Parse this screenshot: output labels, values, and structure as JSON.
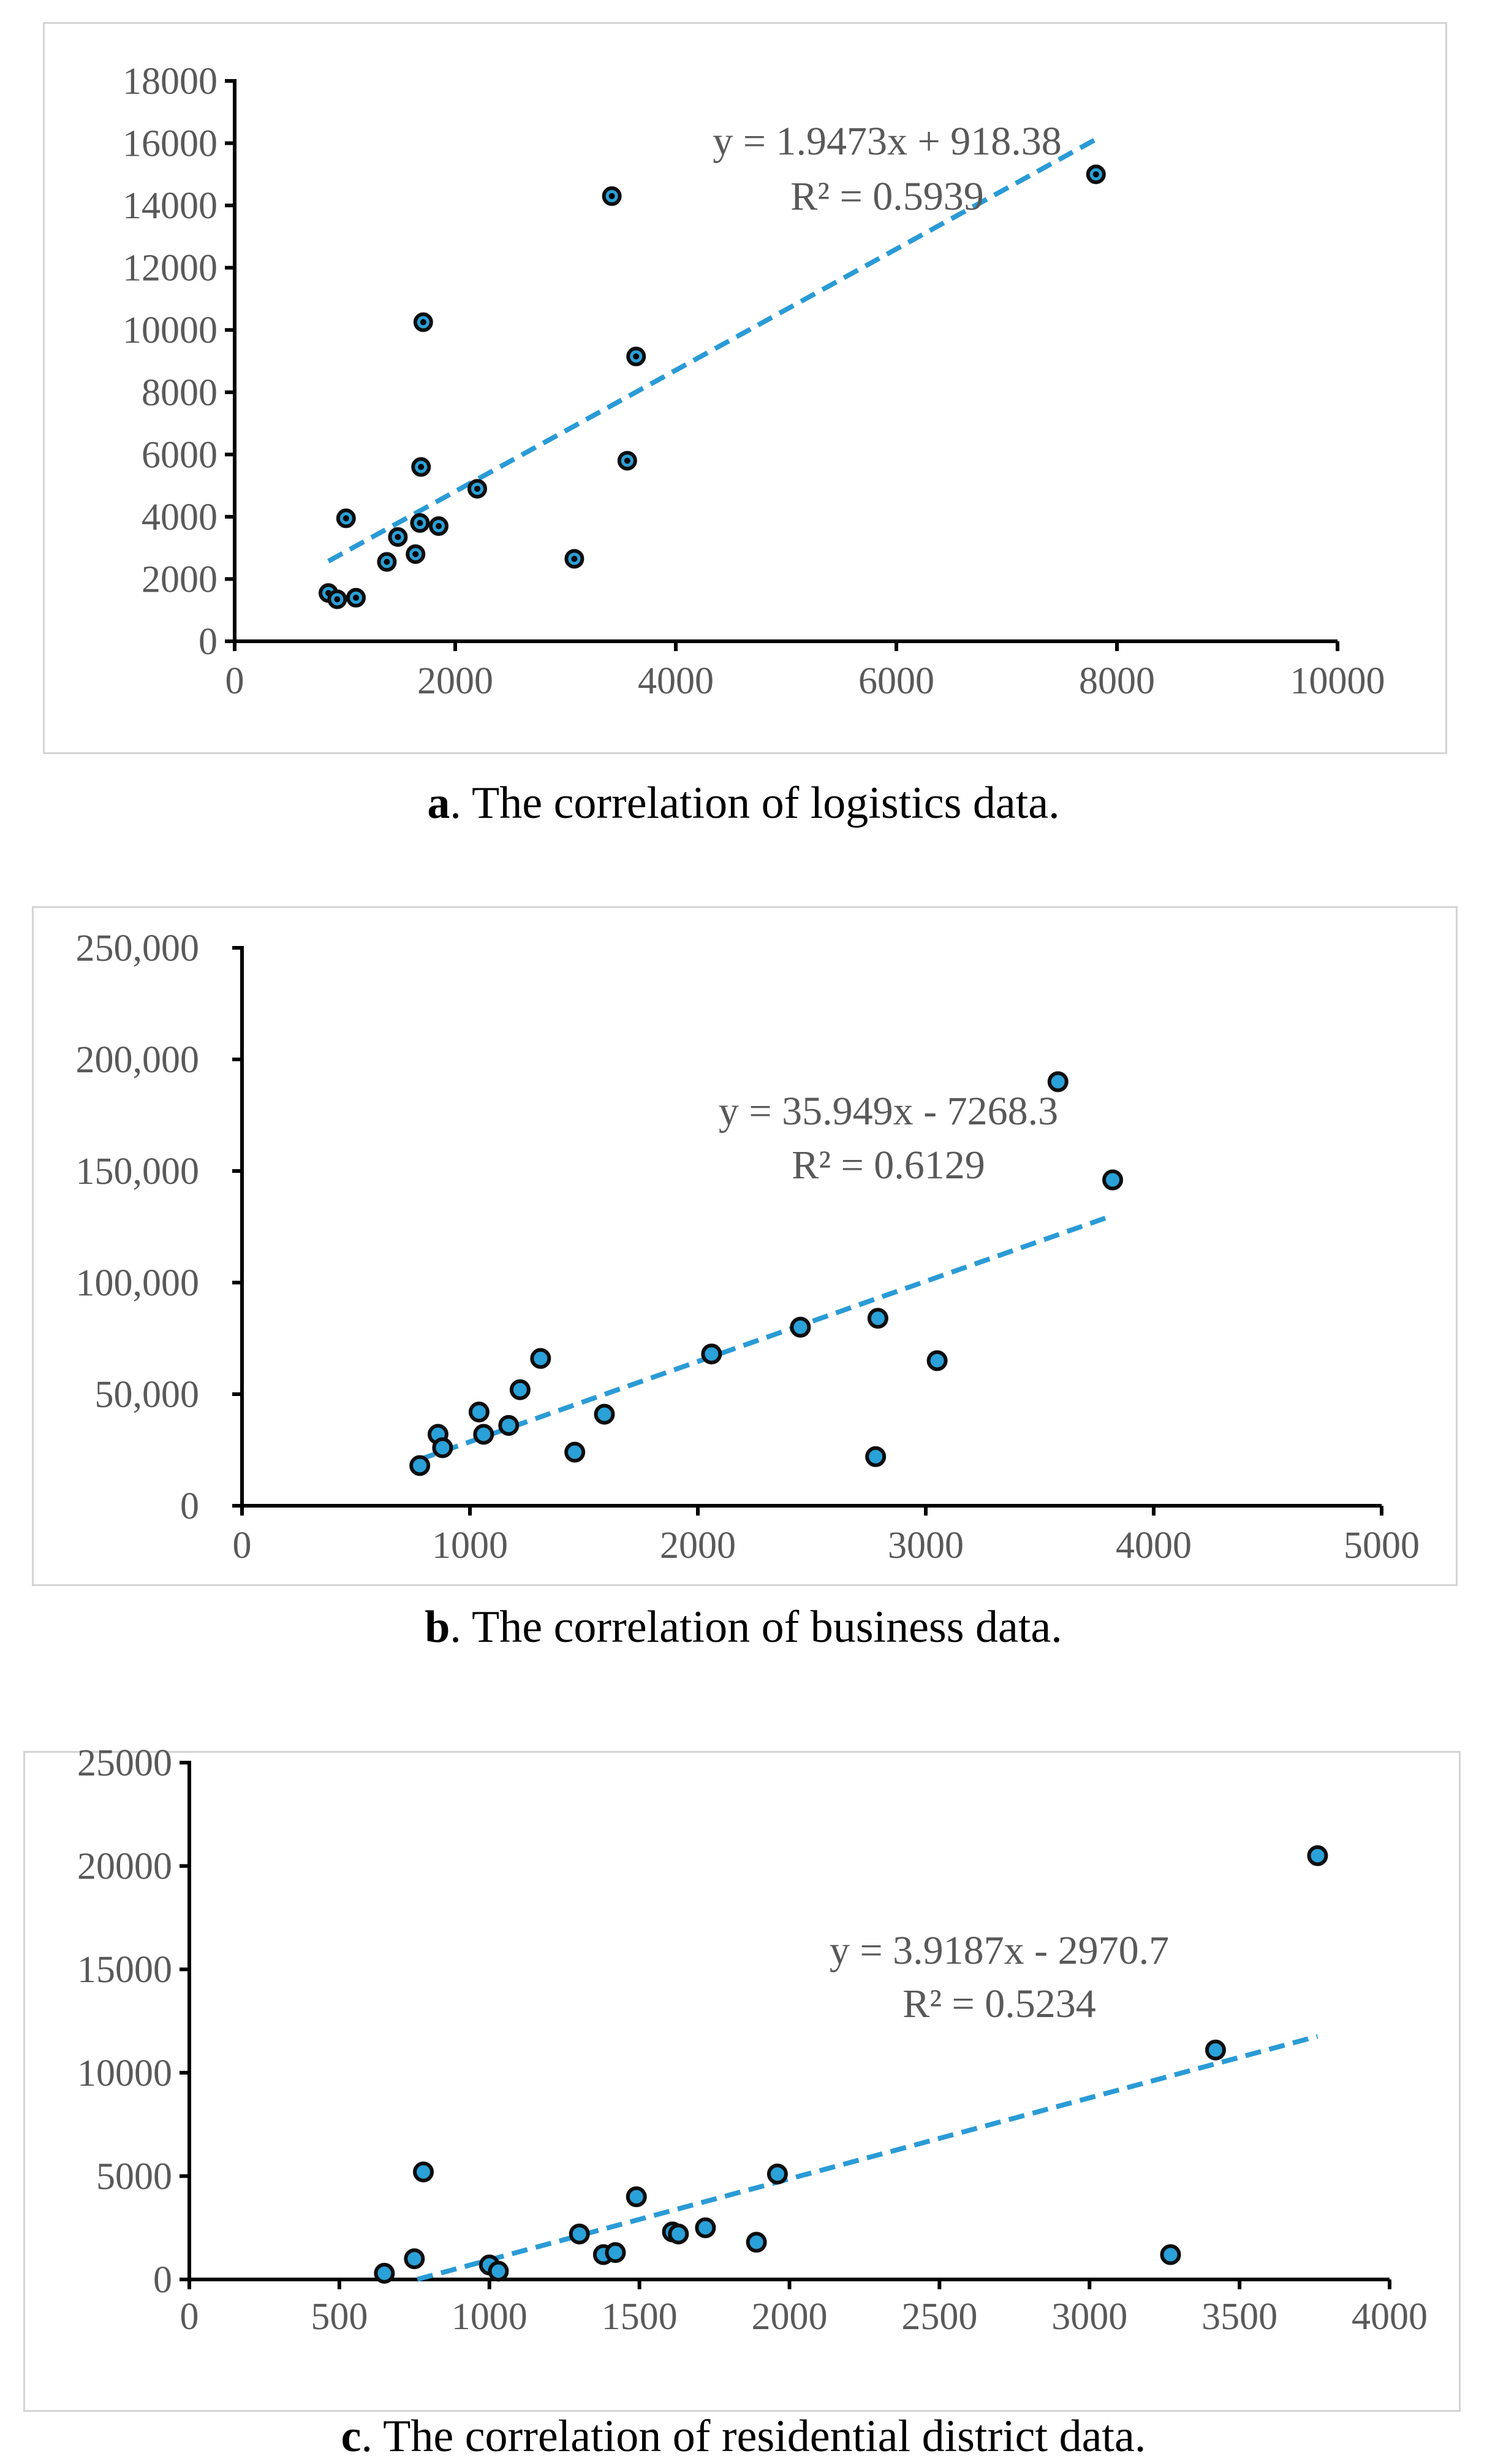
{
  "colors": {
    "marker": "#2aa1d8",
    "marker_edge": "#0d0d0d",
    "trendline": "#2a9bd6",
    "text": "#595959"
  },
  "captions": [
    {
      "letter": "a",
      "text": ". The correlation of logistics data."
    },
    {
      "letter": "b",
      "text": ". The correlation of business data."
    },
    {
      "letter": "c",
      "text": ". The correlation of residential district data."
    }
  ],
  "chart_data": [
    {
      "type": "scatter",
      "title": "",
      "xlabel": "",
      "ylabel": "",
      "xlim": [
        0,
        10000
      ],
      "ylim": [
        0,
        18000
      ],
      "xticks": [
        0,
        2000,
        4000,
        6000,
        8000,
        10000
      ],
      "xtick_labels": [
        "0",
        "2000",
        "4000",
        "6000",
        "8000",
        "10000"
      ],
      "yticks": [
        0,
        2000,
        4000,
        6000,
        8000,
        10000,
        12000,
        14000,
        16000,
        18000
      ],
      "ytick_labels": [
        "0",
        "2000",
        "4000",
        "6000",
        "8000",
        "10000",
        "12000",
        "14000",
        "16000",
        "18000"
      ],
      "points": [
        [
          850,
          1550
        ],
        [
          930,
          1350
        ],
        [
          1100,
          1400
        ],
        [
          1010,
          3950
        ],
        [
          1380,
          2550
        ],
        [
          1480,
          3350
        ],
        [
          1640,
          2800
        ],
        [
          1680,
          3800
        ],
        [
          1690,
          5600
        ],
        [
          1710,
          10250
        ],
        [
          1850,
          3700
        ],
        [
          2200,
          4900
        ],
        [
          3080,
          2650
        ],
        [
          3420,
          14300
        ],
        [
          3560,
          5800
        ],
        [
          3640,
          9150
        ],
        [
          7810,
          15000
        ]
      ],
      "trendline": {
        "slope": 1.9473,
        "intercept": 918.38,
        "x_range": [
          850,
          7810
        ]
      },
      "equation": "y = 1.9473x + 918.38",
      "r_squared": "R² = 0.5939"
    },
    {
      "type": "scatter",
      "title": "",
      "xlabel": "",
      "ylabel": "",
      "xlim": [
        0,
        5000
      ],
      "ylim": [
        0,
        250000
      ],
      "xticks": [
        0,
        1000,
        2000,
        3000,
        4000,
        5000
      ],
      "xtick_labels": [
        "0",
        "1000",
        "2000",
        "3000",
        "4000",
        "5000"
      ],
      "yticks": [
        0,
        50000,
        100000,
        150000,
        200000,
        250000
      ],
      "ytick_labels": [
        "0",
        "50,000",
        "100,000",
        "150,000",
        "200,000",
        "250,000"
      ],
      "points": [
        [
          780,
          18000
        ],
        [
          860,
          32000
        ],
        [
          880,
          26000
        ],
        [
          1040,
          42000
        ],
        [
          1060,
          32000
        ],
        [
          1170,
          36000
        ],
        [
          1220,
          52000
        ],
        [
          1310,
          66000
        ],
        [
          1460,
          24000
        ],
        [
          1590,
          41000
        ],
        [
          2060,
          68000
        ],
        [
          2450,
          80000
        ],
        [
          2790,
          84000
        ],
        [
          2780,
          22000
        ],
        [
          3050,
          65000
        ],
        [
          3580,
          190000
        ],
        [
          3820,
          146000
        ]
      ],
      "trendline": {
        "slope": 35.949,
        "intercept": -7268.3,
        "x_range": [
          780,
          3820
        ]
      },
      "equation": "y = 35.949x - 7268.3",
      "r_squared": "R² = 0.6129"
    },
    {
      "type": "scatter",
      "title": "",
      "xlabel": "",
      "ylabel": "",
      "xlim": [
        0,
        4000
      ],
      "ylim": [
        0,
        25000
      ],
      "xticks": [
        0,
        500,
        1000,
        1500,
        2000,
        2500,
        3000,
        3500,
        4000
      ],
      "xtick_labels": [
        "0",
        "500",
        "1000",
        "1500",
        "2000",
        "2500",
        "3000",
        "3500",
        "4000"
      ],
      "yticks": [
        0,
        5000,
        10000,
        15000,
        20000,
        25000
      ],
      "ytick_labels": [
        "0",
        "5000",
        "10000",
        "15000",
        "20000",
        "25000"
      ],
      "points": [
        [
          650,
          300
        ],
        [
          750,
          1000
        ],
        [
          780,
          5200
        ],
        [
          1000,
          700
        ],
        [
          1030,
          400
        ],
        [
          1300,
          2200
        ],
        [
          1380,
          1200
        ],
        [
          1420,
          1300
        ],
        [
          1490,
          4000
        ],
        [
          1610,
          2300
        ],
        [
          1630,
          2200
        ],
        [
          1720,
          2500
        ],
        [
          1890,
          1800
        ],
        [
          1960,
          5100
        ],
        [
          3270,
          1200
        ],
        [
          3420,
          11100
        ],
        [
          3760,
          20500
        ]
      ],
      "trendline": {
        "slope": 3.9187,
        "intercept": -2970.7,
        "x_range": [
          760,
          3760
        ]
      },
      "equation": "y = 3.9187x - 2970.7",
      "r_squared": "R² = 0.5234"
    }
  ]
}
